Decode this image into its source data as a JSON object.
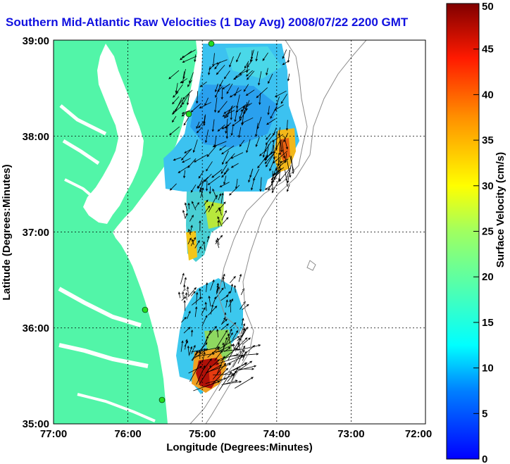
{
  "title": "Southern Mid-Atlantic Raw Velocities (1 Day Avg) 2008/07/22 2200 GMT",
  "x_axis": {
    "label": "Longitude (Degrees:Minutes)",
    "ticks": [
      "77:00",
      "76:00",
      "75:00",
      "74:00",
      "73:00",
      "72:00"
    ]
  },
  "y_axis": {
    "label": "Latitude (Degrees:Minutes)",
    "ticks": [
      "39:00",
      "38:00",
      "37:00",
      "36:00",
      "35:00"
    ]
  },
  "colorbar": {
    "label": "Surface Velocity (cm/s)",
    "ticks": [
      "50",
      "45",
      "40",
      "35",
      "30",
      "25",
      "20",
      "15",
      "10",
      "5",
      "0"
    ],
    "min": 0,
    "max": 50
  },
  "colors": {
    "land": "#52f5a8",
    "title": "#1010e0",
    "station": "#22dd22"
  }
}
